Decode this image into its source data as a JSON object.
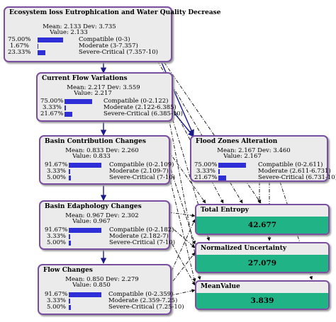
{
  "nodes": {
    "eco": {
      "title": "Ecosystem loss Eutrophication and Water Quality Decrease",
      "mean": "Mean: 2.133 Dev: 3.735",
      "value": "Value: 2.133",
      "states": [
        {
          "pct": "75.00%",
          "label": "Compatible (0-3)",
          "frac": 0.75
        },
        {
          "pct": "1.67%",
          "label": "Moderate (3-7.357)",
          "frac": 0.0167
        },
        {
          "pct": "23.33%",
          "label": "Severe-Critical (7.357-10)",
          "frac": 0.2333
        }
      ]
    },
    "flow_var": {
      "title": "Current Flow Variations",
      "mean": "Mean: 2.217 Dev: 3.559",
      "value": "Value: 2.217",
      "states": [
        {
          "pct": "75.00%",
          "label": "Compatible (0-2.122)",
          "frac": 0.75
        },
        {
          "pct": "3.33%",
          "label": "Moderate (2.122-6.385)",
          "frac": 0.0333
        },
        {
          "pct": "21.67%",
          "label": "Severe-Critical (6.385-10)",
          "frac": 0.2167
        }
      ]
    },
    "basin_contrib": {
      "title": "Basin Contribution Changes",
      "mean": "Mean: 0.833 Dev: 2.260",
      "value": "Value: 0.833",
      "states": [
        {
          "pct": "91.67%",
          "label": "Compatible (0-2.109)",
          "frac": 0.9167
        },
        {
          "pct": "3.33%",
          "label": "Moderate (2.109-7)",
          "frac": 0.0333
        },
        {
          "pct": "5.00%",
          "label": "Severe-Critical (7-10)",
          "frac": 0.05
        }
      ]
    },
    "flood": {
      "title": "Flood Zones Alteration",
      "mean": "Mean: 2.167 Dev: 3.460",
      "value": "Value: 2.167",
      "states": [
        {
          "pct": "75.00%",
          "label": "Compatible (0-2.611)",
          "frac": 0.75
        },
        {
          "pct": "3.33%",
          "label": "Moderate (2.611-6.731)",
          "frac": 0.0333
        },
        {
          "pct": "21.67%",
          "label": "Severe-Critical (6.731-10)",
          "frac": 0.2167
        }
      ]
    },
    "basin_edaph": {
      "title": "Basin Edaphology Changes",
      "mean": "Mean: 0.967 Dev: 2.302",
      "value": "Value: 0.967",
      "states": [
        {
          "pct": "91.67%",
          "label": "Compatible (0-2.182)",
          "frac": 0.9167
        },
        {
          "pct": "3.33%",
          "label": "Moderate (2.182-7)",
          "frac": 0.0333
        },
        {
          "pct": "5.00%",
          "label": "Severe-Critical (7-10)",
          "frac": 0.05
        }
      ]
    },
    "flow_changes": {
      "title": "Flow Changes",
      "mean": "Mean: 0.850 Dev: 2.279",
      "value": "Value: 0.850",
      "states": [
        {
          "pct": "91.67%",
          "label": "Compatible (0-2.359)",
          "frac": 0.9167
        },
        {
          "pct": "3.33%",
          "label": "Moderate (2.359-7.25)",
          "frac": 0.0333
        },
        {
          "pct": "5.00%",
          "label": "Severe-Critical (7.25-10)",
          "frac": 0.05
        }
      ]
    }
  },
  "outputs": {
    "entropy": {
      "title": "Total Entropy",
      "value": "42.677"
    },
    "uncertainty": {
      "title": "Normalized Uncertainty",
      "value": "27.079"
    },
    "mean": {
      "title": "MeanValue",
      "value": "3.839"
    }
  },
  "colors": {
    "border": "#7a4f9f",
    "bar": "#2f2fd8",
    "output_fill": "#1fb386",
    "node_bg": "#ebebeb"
  }
}
